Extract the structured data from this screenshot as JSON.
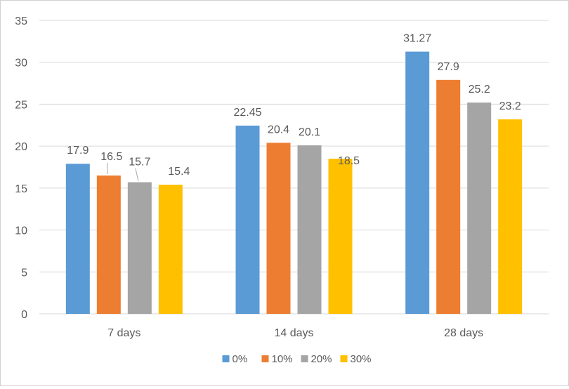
{
  "chart_data": {
    "type": "bar",
    "title": "",
    "xlabel": "",
    "ylabel": "",
    "categories": [
      "7 days",
      "14 days",
      "28 days"
    ],
    "series": [
      {
        "name": "0%",
        "color": "#5B9BD5",
        "values": [
          17.9,
          22.45,
          31.27
        ]
      },
      {
        "name": "10%",
        "color": "#ED7D31",
        "values": [
          16.5,
          20.4,
          27.9
        ]
      },
      {
        "name": "20%",
        "color": "#A5A5A5",
        "values": [
          15.7,
          20.1,
          25.2
        ]
      },
      {
        "name": "30%",
        "color": "#FFC000",
        "values": [
          15.4,
          18.5,
          23.2
        ]
      }
    ],
    "ylim": [
      0,
      35
    ],
    "yticks": [
      0,
      5,
      10,
      15,
      20,
      25,
      30,
      35
    ],
    "grid": true,
    "legend": "bottom",
    "data_labels": [
      [
        "17.9",
        "22.45",
        "31.27"
      ],
      [
        "16.5",
        "20.4",
        "27.9"
      ],
      [
        "15.7",
        "20.1",
        "25.2"
      ],
      [
        "15.4",
        "18.5",
        "23.2"
      ]
    ]
  }
}
